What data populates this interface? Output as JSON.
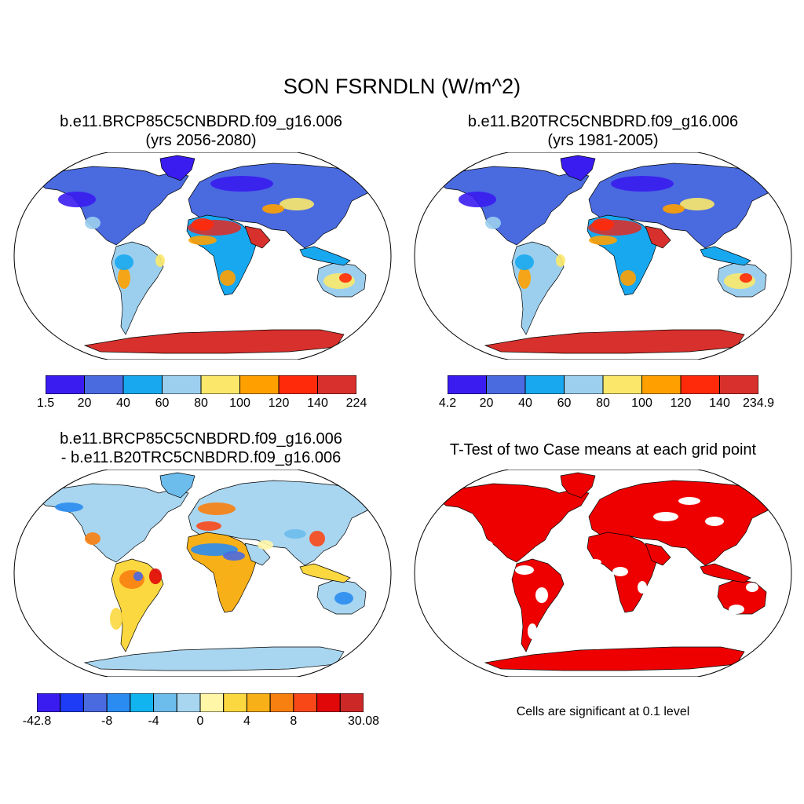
{
  "main_title": "SON FSRNDLN (W/m^2)",
  "panels": [
    {
      "title_line1": "b.e11.BRCP85C5CNBDRD.f09_g16.006",
      "title_line2": "(yrs 2056-2080)",
      "colorbar": {
        "labels": [
          "1.5",
          "20",
          "40",
          "60",
          "80",
          "100",
          "120",
          "140",
          "224"
        ],
        "colors": [
          "#3a1cf0",
          "#4a6ae0",
          "#18a8f0",
          "#9ccfee",
          "#fbe86a",
          "#ffa000",
          "#ff2a0a",
          "#d8302c"
        ]
      }
    },
    {
      "title_line1": "b.e11.B20TRC5CNBDRD.f09_g16.006",
      "title_line2": "(yrs 1981-2005)",
      "colorbar": {
        "labels": [
          "4.2",
          "20",
          "40",
          "60",
          "80",
          "100",
          "120",
          "140",
          "234.9"
        ],
        "colors": [
          "#3a1cf0",
          "#4a6ae0",
          "#18a8f0",
          "#9ccfee",
          "#fbe86a",
          "#ffa000",
          "#ff2a0a",
          "#d8302c"
        ]
      }
    },
    {
      "title_line1": "b.e11.BRCP85C5CNBDRD.f09_g16.006",
      "title_line2": "- b.e11.B20TRC5CNBDRD.f09_g16.006",
      "colorbar": {
        "labels": [
          "-42.8",
          "-8",
          "-4",
          "0",
          "4",
          "8",
          "30.08"
        ],
        "colors": [
          "#3a1cf0",
          "#1e3cf5",
          "#4a6ae0",
          "#2a8cf0",
          "#12b4f0",
          "#6cbcec",
          "#a8d6f0",
          "#fff6a8",
          "#fcd840",
          "#f8b018",
          "#f88010",
          "#f84818",
          "#e00808",
          "#cc2828"
        ]
      }
    },
    {
      "title_line1": "T-Test of two Case means at each grid point",
      "footnote": "Cells are significant at 0.1 level",
      "fill_color": "#ee0000"
    }
  ]
}
